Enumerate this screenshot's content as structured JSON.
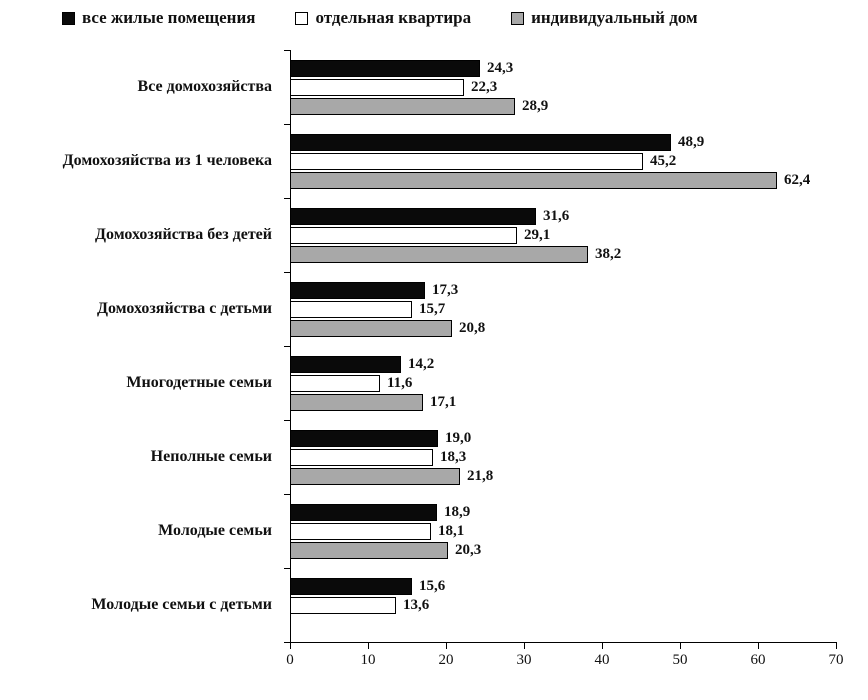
{
  "legend": [
    {
      "name": "all-dwellings",
      "label": "все жилые помещения",
      "color": "#0a0a0a"
    },
    {
      "name": "separate-apartment",
      "label": "отдельная квартира",
      "color": "#ffffff"
    },
    {
      "name": "individual-house",
      "label": "индивидуальный дом",
      "color": "#a8a8a8"
    }
  ],
  "chart_data": {
    "type": "bar",
    "orientation": "horizontal",
    "title": "",
    "xlabel": "",
    "ylabel": "",
    "xlim": [
      0,
      70
    ],
    "xticks": [
      0,
      10,
      20,
      30,
      40,
      50,
      60,
      70
    ],
    "grid": false,
    "legend_position": "top",
    "decimal_separator": ",",
    "categories": [
      "Все домохозяйства",
      "Домохозяйства из  1 человека",
      "Домохозяйства без детей",
      "Домохозяйства с детьми",
      "Многодетные семьи",
      "Неполные семьи",
      "Молодые семьи",
      "Молодые семьи с детьми"
    ],
    "series": [
      {
        "name": "все жилые помещения",
        "color": "#0a0a0a",
        "values": [
          24.3,
          48.9,
          31.6,
          17.3,
          14.2,
          19.0,
          18.9,
          15.6
        ]
      },
      {
        "name": "отдельная квартира",
        "color": "#ffffff",
        "values": [
          22.3,
          45.2,
          29.1,
          15.7,
          11.6,
          18.3,
          18.1,
          13.6
        ]
      },
      {
        "name": "индивидуальный дом",
        "color": "#a8a8a8",
        "values": [
          28.9,
          62.4,
          38.2,
          20.8,
          17.1,
          21.8,
          20.3,
          null
        ]
      }
    ]
  }
}
